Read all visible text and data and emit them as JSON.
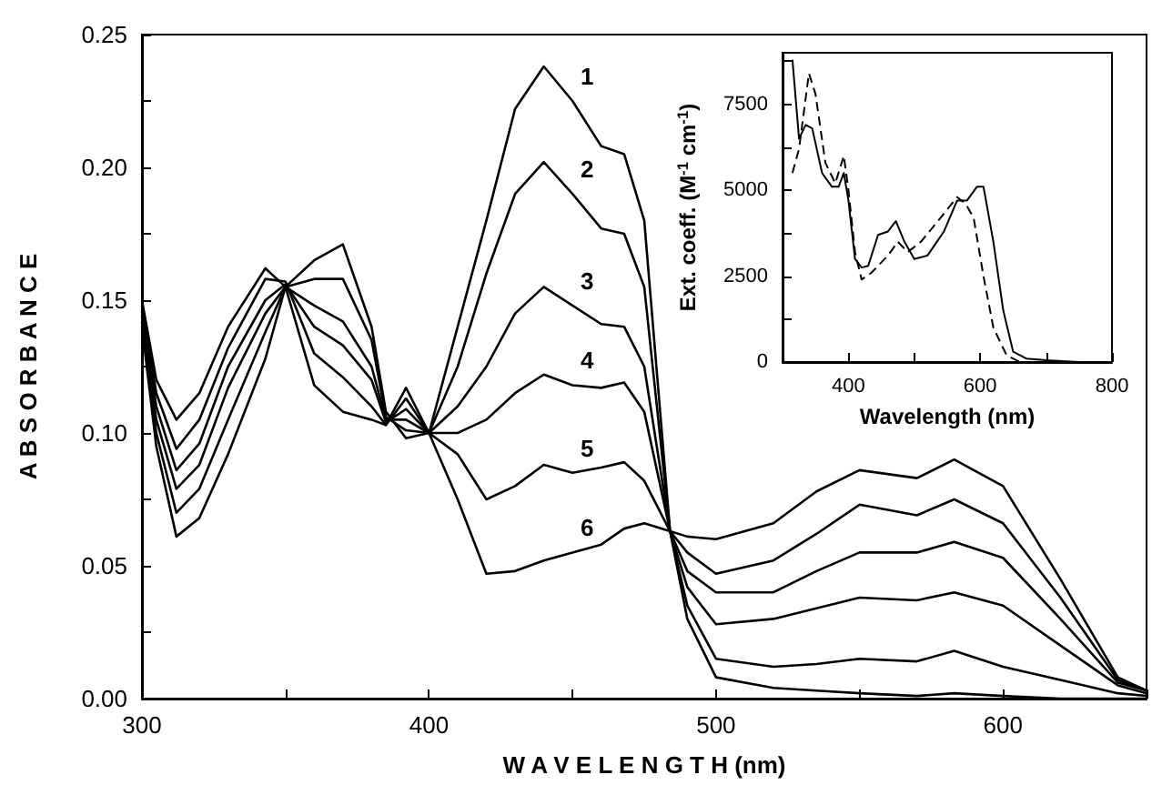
{
  "chart_data": [
    {
      "type": "line",
      "xlabel": "W A V E L E N G T H (nm)",
      "ylabel": "A B S O R B A N C E",
      "marker": "none",
      "line_style": "solid",
      "grid": false,
      "legend": false,
      "x": [
        300,
        305,
        312,
        320,
        330,
        343,
        350,
        360,
        370,
        380,
        385,
        392,
        400,
        410,
        420,
        430,
        440,
        450,
        460,
        468,
        475,
        484,
        490,
        500,
        520,
        535,
        550,
        570,
        583,
        600,
        620,
        640,
        650
      ],
      "xlim": [
        300,
        650
      ],
      "xticks": [
        300,
        {
          "value": 350,
          "label": null
        },
        400,
        {
          "value": 450,
          "label": null
        },
        500,
        {
          "value": 550,
          "label": null
        },
        600,
        {
          "value": 650,
          "label": null
        }
      ],
      "ylim": [
        0,
        0.25
      ],
      "yticks": [
        {
          "value": 0,
          "label": "0.00"
        },
        {
          "value": 0.025,
          "label": null
        },
        {
          "value": 0.05,
          "label": "0.05"
        },
        {
          "value": 0.075,
          "label": null
        },
        {
          "value": 0.1,
          "label": "0.10"
        },
        {
          "value": 0.125,
          "label": null
        },
        {
          "value": 0.15,
          "label": "0.15"
        },
        {
          "value": 0.175,
          "label": null
        },
        {
          "value": 0.2,
          "label": "0.20"
        },
        {
          "value": 0.225,
          "label": null
        },
        {
          "value": 0.25,
          "label": "0.25"
        }
      ],
      "series": [
        {
          "name": "1",
          "color": "#000000",
          "values": [
            0.15,
            0.12,
            0.105,
            0.115,
            0.14,
            0.162,
            0.155,
            0.118,
            0.108,
            0.105,
            0.103,
            0.117,
            0.1,
            0.14,
            0.18,
            0.222,
            0.238,
            0.225,
            0.208,
            0.205,
            0.18,
            0.063,
            0.03,
            0.008,
            0.004,
            0.003,
            0.002,
            0.001,
            0.002,
            0.001,
            0,
            0,
            0
          ]
        },
        {
          "name": "2",
          "color": "#000000",
          "values": [
            0.148,
            0.115,
            0.094,
            0.105,
            0.132,
            0.158,
            0.157,
            0.13,
            0.121,
            0.11,
            0.103,
            0.113,
            0.1,
            0.125,
            0.16,
            0.19,
            0.202,
            0.19,
            0.177,
            0.175,
            0.155,
            0.063,
            0.035,
            0.015,
            0.012,
            0.013,
            0.015,
            0.014,
            0.018,
            0.012,
            0.007,
            0.002,
            0.001
          ]
        },
        {
          "name": "3",
          "color": "#000000",
          "values": [
            0.146,
            0.11,
            0.086,
            0.096,
            0.125,
            0.15,
            0.156,
            0.14,
            0.133,
            0.12,
            0.104,
            0.109,
            0.1,
            0.11,
            0.125,
            0.145,
            0.155,
            0.148,
            0.141,
            0.14,
            0.125,
            0.063,
            0.042,
            0.028,
            0.03,
            0.034,
            0.038,
            0.037,
            0.04,
            0.035,
            0.02,
            0.005,
            0.002
          ]
        },
        {
          "name": "4",
          "color": "#000000",
          "values": [
            0.144,
            0.105,
            0.079,
            0.088,
            0.117,
            0.145,
            0.155,
            0.148,
            0.142,
            0.125,
            0.105,
            0.105,
            0.1,
            0.1,
            0.105,
            0.115,
            0.122,
            0.118,
            0.117,
            0.119,
            0.108,
            0.063,
            0.048,
            0.04,
            0.04,
            0.048,
            0.055,
            0.055,
            0.059,
            0.053,
            0.03,
            0.006,
            0.003
          ]
        },
        {
          "name": "5",
          "color": "#000000",
          "values": [
            0.142,
            0.1,
            0.07,
            0.079,
            0.105,
            0.138,
            0.155,
            0.158,
            0.158,
            0.135,
            0.106,
            0.101,
            0.1,
            0.092,
            0.075,
            0.08,
            0.088,
            0.085,
            0.087,
            0.089,
            0.082,
            0.063,
            0.055,
            0.047,
            0.052,
            0.062,
            0.073,
            0.069,
            0.075,
            0.066,
            0.038,
            0.007,
            0.003
          ]
        },
        {
          "name": "6",
          "color": "#000000",
          "values": [
            0.14,
            0.095,
            0.061,
            0.068,
            0.092,
            0.128,
            0.155,
            0.165,
            0.171,
            0.14,
            0.108,
            0.098,
            0.1,
            0.075,
            0.047,
            0.048,
            0.052,
            0.055,
            0.058,
            0.064,
            0.066,
            0.063,
            0.061,
            0.06,
            0.066,
            0.078,
            0.086,
            0.083,
            0.09,
            0.08,
            0.045,
            0.008,
            0.003
          ]
        }
      ]
    },
    {
      "type": "line",
      "xlabel": "Wavelength (nm)",
      "ylabel": "Ext. coeff. (M$^{-1}$ cm$^{-1}$)",
      "marker": "none",
      "grid": false,
      "legend": false,
      "xlim": [
        300,
        800
      ],
      "xticks": [
        400,
        {
          "value": 500,
          "label": null
        },
        600,
        {
          "value": 700,
          "label": null
        },
        800
      ],
      "ylim": [
        0,
        9000
      ],
      "yticks": [
        0,
        {
          "value": 1250,
          "label": null
        },
        2500,
        {
          "value": 3750,
          "label": null
        },
        5000,
        {
          "value": 6250,
          "label": null
        },
        7500,
        {
          "value": 8750,
          "label": null
        }
      ],
      "series": [
        {
          "color": "#000000",
          "line_style": "solid",
          "x": [
            315,
            325,
            335,
            345,
            360,
            375,
            385,
            393,
            400,
            410,
            420,
            430,
            445,
            460,
            472,
            485,
            500,
            520,
            545,
            565,
            580,
            595,
            605,
            620,
            635,
            650,
            670,
            700,
            750,
            800
          ],
          "values": [
            8800,
            6500,
            6900,
            6800,
            5500,
            5100,
            5100,
            5500,
            4700,
            3000,
            2750,
            2800,
            3700,
            3800,
            4100,
            3500,
            3000,
            3100,
            3800,
            4700,
            4700,
            5100,
            5100,
            3500,
            1500,
            300,
            100,
            50,
            0,
            0
          ]
        },
        {
          "color": "#000000",
          "line_style": "dashed",
          "x": [
            315,
            325,
            340,
            350,
            365,
            380,
            393,
            400,
            410,
            420,
            435,
            460,
            475,
            490,
            510,
            540,
            565,
            578,
            590,
            605,
            620,
            640,
            660,
            700,
            800
          ],
          "values": [
            5500,
            6200,
            8400,
            7800,
            5800,
            5200,
            6000,
            5000,
            3200,
            2400,
            2600,
            3100,
            3500,
            3200,
            3500,
            4200,
            4800,
            4600,
            4200,
            2500,
            1000,
            200,
            0,
            0,
            0
          ]
        }
      ]
    }
  ]
}
